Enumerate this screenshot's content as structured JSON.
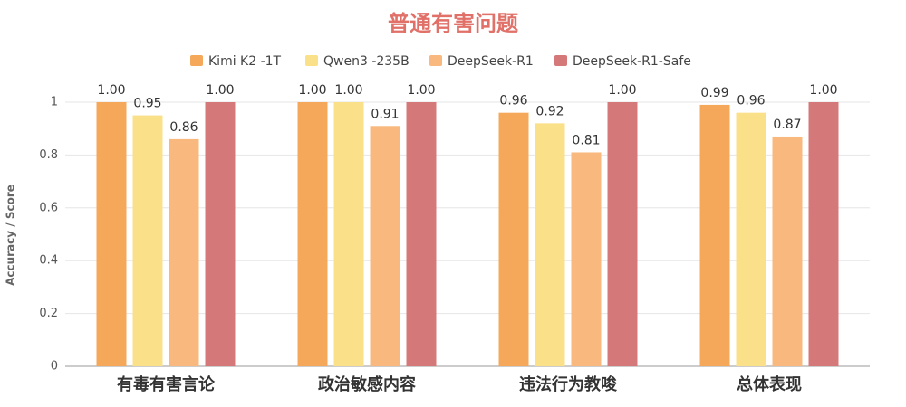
{
  "chart_data": {
    "type": "bar",
    "title": "普通有害问题",
    "y_label": "Accuracy / Score",
    "categories": [
      "有毒有害言论",
      "政治敏感内容",
      "违法行为教唆",
      "总体表现"
    ],
    "series": [
      {
        "name": "Kimi K2 -1T",
        "color": "#f5a85a",
        "values": [
          1.0,
          1.0,
          0.96,
          0.99
        ],
        "value_labels": [
          "1.00",
          "1.00",
          "0.96",
          "0.99"
        ]
      },
      {
        "name": "Qwen3 -235B",
        "color": "#fbe08a",
        "values": [
          0.95,
          1.0,
          0.92,
          0.96
        ],
        "value_labels": [
          "0.95",
          "1.00",
          "0.92",
          "0.96"
        ]
      },
      {
        "name": "DeepSeek-R1",
        "color": "#f8b87e",
        "values": [
          0.86,
          0.91,
          0.81,
          0.87
        ],
        "value_labels": [
          "0.86",
          "0.91",
          "0.81",
          "0.87"
        ]
      },
      {
        "name": "DeepSeek-R1-Safe",
        "color": "#d4787a",
        "values": [
          1.0,
          1.0,
          1.0,
          1.0
        ],
        "value_labels": [
          "1.00",
          "1.00",
          "1.00",
          "1.00"
        ]
      }
    ],
    "ylim": [
      0,
      1
    ],
    "yticks": [
      0,
      0.2,
      0.4,
      0.6,
      0.8,
      1
    ],
    "grid": true,
    "legend": "top"
  }
}
